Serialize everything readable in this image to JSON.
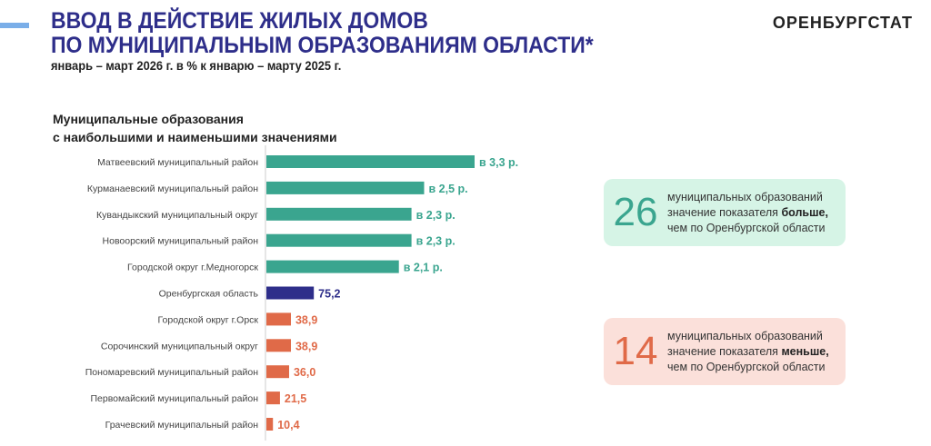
{
  "header": {
    "title_line1": "ВВОД В ДЕЙСТВИЕ ЖИЛЫХ ДОМОВ",
    "title_line2": "ПО МУНИЦИПАЛЬНЫМ ОБРАЗОВАНИЯМ ОБЛАСТИ*",
    "subtitle": "январь – март 2026 г. в % к январю – марту 2025 г.",
    "brand": "ОРЕНБУРГСТАТ"
  },
  "chart_data": {
    "type": "bar",
    "orientation": "horizontal",
    "title_line1": "Муниципальные образования",
    "title_line2": "с наибольшими и наименьшими значениями",
    "unit": "% к январю – марту 2025 г.",
    "categories": [
      "Матвеевский муниципальный район",
      "Курманаевский муниципальный район",
      "Кувандыкский муниципальный округ",
      "Новоорский муниципальный район",
      "Городской округ г.Медногорск",
      "Оренбургская область",
      "Городской округ г.Орск",
      "Сорочинский муниципальный округ",
      "Пономаревский муниципальный район",
      "Первомайский муниципальный район",
      "Грачевский муниципальный район"
    ],
    "values": [
      330,
      250,
      230,
      230,
      210,
      75.2,
      38.9,
      38.9,
      36.0,
      21.5,
      10.4
    ],
    "labels": [
      "в 3,3 р.",
      "в 2,5 р.",
      "в 2,3 р.",
      "в 2,3 р.",
      "в 2,1 р.",
      "75,2",
      "38,9",
      "38,9",
      "36,0",
      "21,5",
      "10,4"
    ],
    "groups": [
      "high",
      "high",
      "high",
      "high",
      "high",
      "region",
      "low",
      "low",
      "low",
      "low",
      "low"
    ],
    "colors": {
      "high": "#3aa58f",
      "region": "#2e2e8a",
      "low": "#e06a48"
    },
    "xlim": [
      0,
      330
    ]
  },
  "summary": {
    "more": {
      "count": "26",
      "line1": "муниципальных образований",
      "line2": "значение показателя ",
      "bold": "больше,",
      "line3": "чем по Оренбургской области"
    },
    "less": {
      "count": "14",
      "line1": "муниципальных образований",
      "line2": "значение показателя ",
      "bold": "меньше,",
      "line3": "чем по Оренбургской области"
    }
  }
}
